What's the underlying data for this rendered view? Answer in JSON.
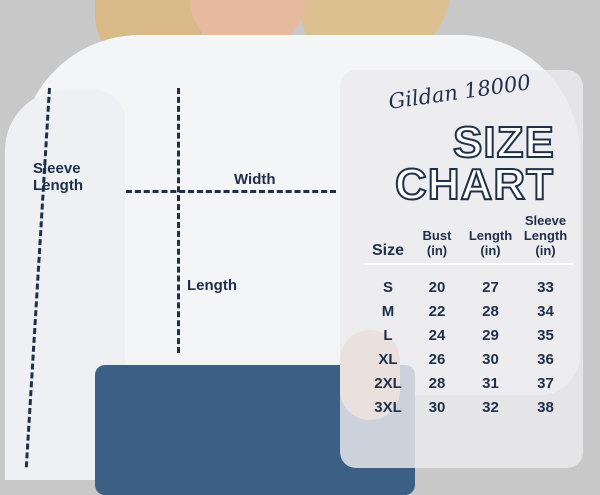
{
  "brand": "Gildan 18000",
  "title_line1": "SIZE",
  "title_line2": "CHART",
  "measure_labels": {
    "sleeve_length": "Sleeve Length",
    "width": "Width",
    "length": "Length"
  },
  "colors": {
    "text": "#1e2f4a",
    "background": "#c8c8c8"
  },
  "table": {
    "headers": [
      "Size",
      "Bust (in)",
      "Length (in)",
      "Sleeve Length (in)"
    ],
    "rows": [
      [
        "S",
        "20",
        "27",
        "33"
      ],
      [
        "M",
        "22",
        "28",
        "34"
      ],
      [
        "L",
        "24",
        "29",
        "35"
      ],
      [
        "XL",
        "26",
        "30",
        "36"
      ],
      [
        "2XL",
        "28",
        "31",
        "37"
      ],
      [
        "3XL",
        "30",
        "32",
        "38"
      ]
    ]
  }
}
